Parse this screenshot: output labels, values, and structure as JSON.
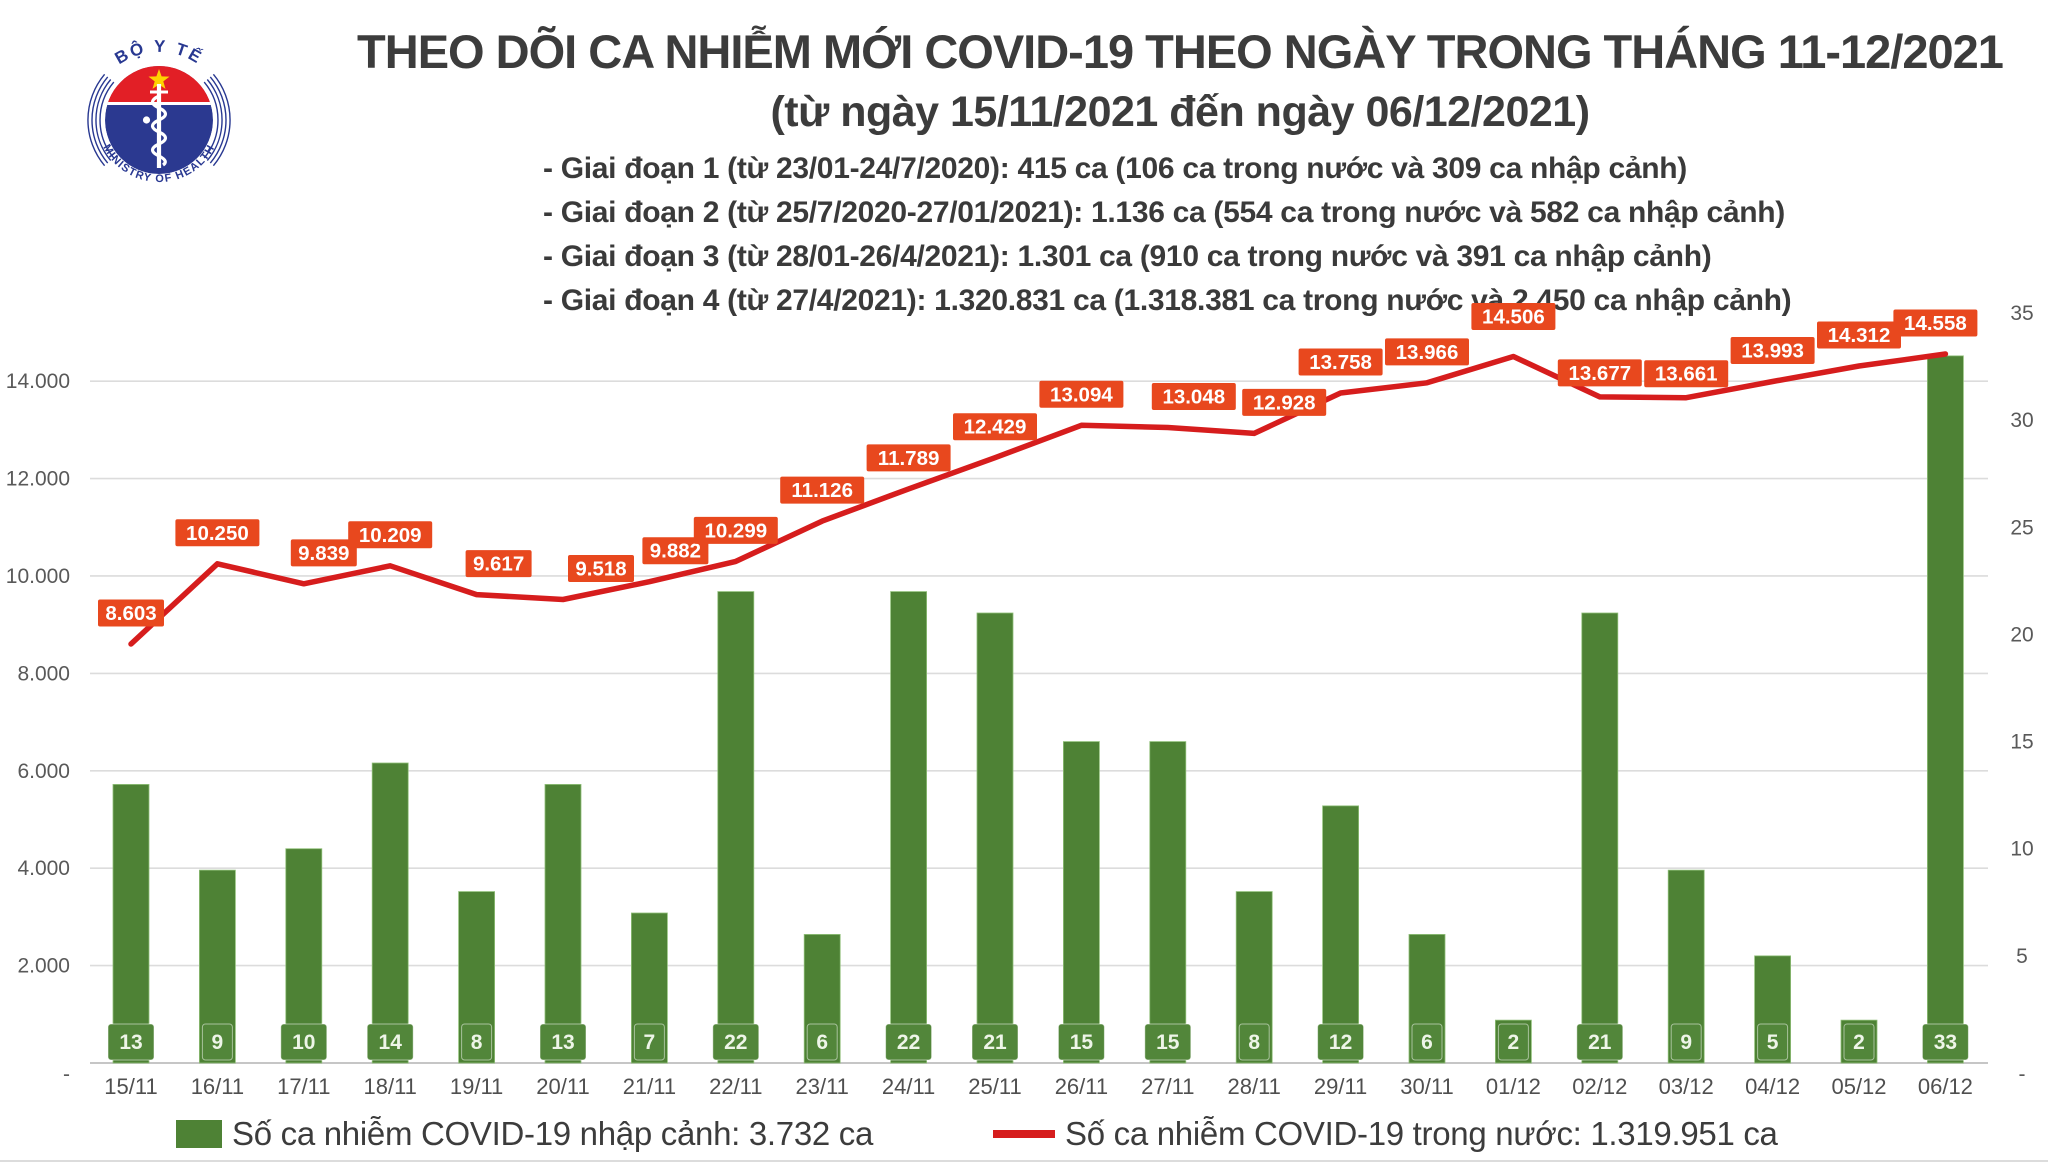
{
  "logo": {
    "top_text": "BỘ Y TẾ",
    "bottom_text": "MINISTRY OF HEALTH"
  },
  "header": {
    "title": "THEO DÕI CA NHIỄM MỚI COVID-19 THEO NGÀY TRONG THÁNG 11-12/2021",
    "subtitle": "(từ ngày 15/11/2021 đến ngày 06/12/2021)",
    "bullets": [
      "- Giai đoạn 1 (từ 23/01-24/7/2020): 415 ca (106 ca trong nước và 309 ca nhập cảnh)",
      "- Giai đoạn 2 (từ 25/7/2020-27/01/2021): 1.136 ca (554 ca trong nước và 582 ca nhập cảnh)",
      "- Giai đoạn 3 (từ 28/01-26/4/2021): 1.301 ca (910 ca trong nước và 391 ca nhập cảnh)",
      "- Giai đoạn 4 (từ 27/4/2021): 1.320.831 ca (1.318.381 ca trong nước và 2.450 ca nhập cảnh)"
    ]
  },
  "chart_data": {
    "type": "bar",
    "subtype": "bar+line combo, dual axis",
    "categories": [
      "15/11",
      "16/11",
      "17/11",
      "18/11",
      "19/11",
      "20/11",
      "21/11",
      "22/11",
      "23/11",
      "24/11",
      "25/11",
      "26/11",
      "27/11",
      "28/11",
      "29/11",
      "30/11",
      "01/12",
      "02/12",
      "03/12",
      "04/12",
      "05/12",
      "06/12"
    ],
    "series": [
      {
        "name": "Số ca nhiễm COVID-19 nhập cảnh",
        "type": "bar",
        "axis": "right",
        "color": "#4e8235",
        "values": [
          13,
          9,
          10,
          14,
          8,
          13,
          7,
          22,
          6,
          22,
          21,
          15,
          15,
          8,
          12,
          6,
          2,
          21,
          9,
          5,
          2,
          33
        ],
        "value_labels": [
          "13",
          "9",
          "10",
          "14",
          "8",
          "13",
          "7",
          "22",
          "6",
          "22",
          "21",
          "15",
          "15",
          "8",
          "12",
          "6",
          "2",
          "21",
          "9",
          "5",
          "2",
          "33"
        ]
      },
      {
        "name": "Số ca nhiễm COVID-19 trong nước",
        "type": "line",
        "axis": "left",
        "color": "#d61d1d",
        "label_bg": "#e8481e",
        "values": [
          8603,
          10250,
          9839,
          10209,
          9617,
          9518,
          9882,
          10299,
          11126,
          11789,
          12429,
          13094,
          13048,
          12928,
          13758,
          13966,
          14506,
          13677,
          13661,
          13993,
          14312,
          14558
        ],
        "value_labels": [
          "8.603",
          "10.250",
          "9.839",
          "10.209",
          "9.617",
          "9.518",
          "9.882",
          "10.299",
          "11.126",
          "11.789",
          "12.429",
          "13.094",
          "13.048",
          "12.928",
          "13.758",
          "13.966",
          "14.506",
          "13.677",
          "13.661",
          "13.993",
          "14.312",
          "14.558"
        ]
      }
    ],
    "left_axis": {
      "max": 15400,
      "ticks": [
        {
          "label": "14.000",
          "value": 14000
        },
        {
          "label": "12.000",
          "value": 12000
        },
        {
          "label": "10.000",
          "value": 10000
        },
        {
          "label": "8.000",
          "value": 8000
        },
        {
          "label": "6.000",
          "value": 6000
        },
        {
          "label": "4.000",
          "value": 4000
        },
        {
          "label": "2.000",
          "value": 2000
        },
        {
          "label": "-",
          "value": 0
        }
      ]
    },
    "right_axis": {
      "max": 35,
      "ticks": [
        {
          "label": "35",
          "value": 35
        },
        {
          "label": "30",
          "value": 30
        },
        {
          "label": "25",
          "value": 25
        },
        {
          "label": "20",
          "value": 20
        },
        {
          "label": "15",
          "value": 15
        },
        {
          "label": "10",
          "value": 10
        },
        {
          "label": "5",
          "value": 5
        },
        {
          "label": "-",
          "value": 0
        }
      ]
    },
    "grid": true,
    "legend_position": "bottom",
    "legend": [
      {
        "swatch": "square",
        "color": "#4e8235",
        "label": "Số ca nhiễm COVID-19 nhập cảnh: 3.732 ca"
      },
      {
        "swatch": "line",
        "color": "#d61d1d",
        "label": "Số ca nhiễm COVID-19 trong nước: 1.319.951 ca"
      }
    ]
  }
}
